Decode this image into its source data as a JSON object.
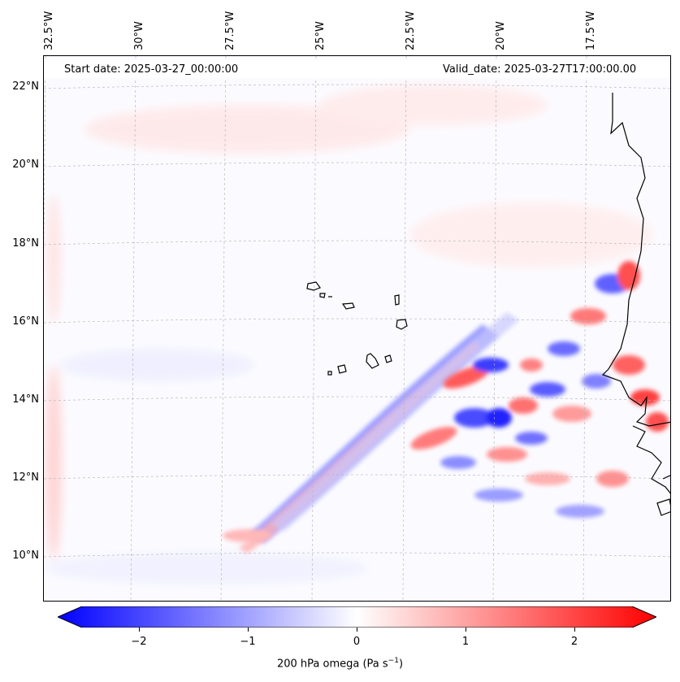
{
  "header": {
    "start_date": "Start date: 2025-03-27_00:00:00",
    "valid_date": "Valid_date: 2025-03-27T17:00:00.00"
  },
  "lon_labels": [
    "32.5°W",
    "30°W",
    "27.5°W",
    "25°W",
    "22.5°W",
    "20°W",
    "17.5°W"
  ],
  "lat_labels": [
    "22°N",
    "20°N",
    "18°N",
    "16°N",
    "14°N",
    "12°N",
    "10°N"
  ],
  "colorbar": {
    "ticks": [
      "−2",
      "−1",
      "0",
      "1",
      "2"
    ],
    "title": "200 hPa omega (Pa s",
    "title_unit_sup": "−1",
    "title_close": ")",
    "colors": {
      "negative": "#0000ff",
      "zero": "#ffffff",
      "positive": "#ff0000"
    }
  },
  "map": {
    "coastline_color": "#000000",
    "gridline_color": "#b0b0b0"
  }
}
